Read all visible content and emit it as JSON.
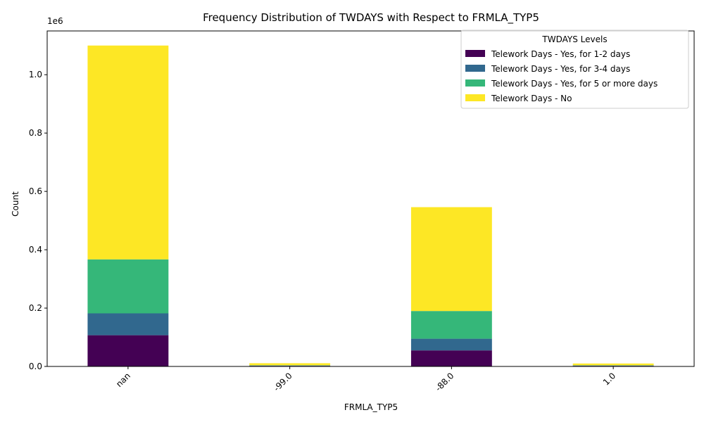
{
  "chart_data": {
    "type": "bar",
    "stacked": true,
    "title": "Frequency Distribution of TWDAYS with Respect to FRMLA_TYP5",
    "xlabel": "FRMLA_TYP5",
    "ylabel": "Count",
    "y_offset_label": "1e6",
    "ylim": [
      0,
      1150000
    ],
    "yticks": [
      0,
      200000,
      400000,
      600000,
      800000,
      1000000
    ],
    "ytick_labels": [
      "0.0",
      "0.2",
      "0.4",
      "0.6",
      "0.8",
      "1.0"
    ],
    "categories": [
      "nan",
      "-99.0",
      "-88.0",
      "1.0"
    ],
    "grid": false,
    "legend_title": "TWDAYS Levels",
    "legend_position": "top-right",
    "series": [
      {
        "name": "Telework Days - Yes, for 1-2 days",
        "color": "#440154",
        "values": [
          107000,
          2000,
          55000,
          2000
        ]
      },
      {
        "name": "Telework Days - Yes, for 3-4 days",
        "color": "#31688e",
        "values": [
          75000,
          1000,
          40000,
          1000
        ]
      },
      {
        "name": "Telework Days - Yes, for 5 or more days",
        "color": "#35b779",
        "values": [
          185000,
          1000,
          95000,
          1000
        ]
      },
      {
        "name": "Telework Days - No",
        "color": "#fde725",
        "values": [
          733000,
          7000,
          356000,
          6000
        ]
      }
    ]
  }
}
